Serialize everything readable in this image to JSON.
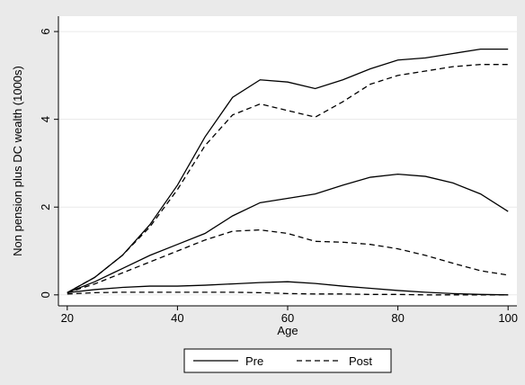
{
  "chart_data": {
    "type": "line",
    "x_label": "Age",
    "y_label": "Non pension plus DC wealth (1000s)",
    "x": [
      20,
      25,
      30,
      35,
      40,
      45,
      50,
      55,
      60,
      65,
      70,
      75,
      80,
      85,
      90,
      95,
      100
    ],
    "series": [
      {
        "name": "Pre",
        "color": "#000000",
        "dash": "solid",
        "values": [
          0.05,
          0.4,
          0.9,
          1.6,
          2.5,
          3.6,
          4.5,
          4.9,
          4.85,
          4.7,
          4.9,
          5.15,
          5.35,
          5.4,
          5.5,
          5.6,
          5.6
        ]
      },
      {
        "name": "Post",
        "color": "#000000",
        "dash": "dashed",
        "values": [
          0.05,
          0.4,
          0.9,
          1.55,
          2.4,
          3.4,
          4.1,
          4.35,
          4.2,
          4.05,
          4.4,
          4.8,
          5.0,
          5.1,
          5.2,
          5.25,
          5.25
        ]
      },
      {
        "color": "#000000",
        "dash": "solid",
        "values": [
          0.05,
          0.3,
          0.6,
          0.9,
          1.15,
          1.4,
          1.8,
          2.1,
          2.2,
          2.3,
          2.5,
          2.68,
          2.75,
          2.7,
          2.55,
          2.3,
          1.9
        ]
      },
      {
        "color": "#000000",
        "dash": "dashed",
        "values": [
          0.05,
          0.25,
          0.5,
          0.75,
          1.0,
          1.25,
          1.45,
          1.48,
          1.4,
          1.22,
          1.2,
          1.15,
          1.05,
          0.9,
          0.72,
          0.55,
          0.45
        ]
      },
      {
        "color": "#000000",
        "dash": "solid",
        "values": [
          0.05,
          0.12,
          0.17,
          0.2,
          0.2,
          0.22,
          0.25,
          0.28,
          0.3,
          0.26,
          0.2,
          0.15,
          0.1,
          0.06,
          0.03,
          0.01,
          0
        ]
      },
      {
        "color": "#000000",
        "dash": "dashed",
        "values": [
          0.02,
          0.05,
          0.06,
          0.06,
          0.06,
          0.06,
          0.06,
          0.05,
          0.03,
          0.02,
          0.02,
          0.01,
          0.01,
          0,
          0,
          0,
          0
        ]
      }
    ],
    "xlim": [
      18.4,
      101.6
    ],
    "ylim": [
      -0.25,
      6.35
    ],
    "xticks": [
      20,
      40,
      60,
      80,
      100
    ],
    "yticks": [
      0,
      2,
      4,
      6
    ],
    "grid": true,
    "legend": "bottom"
  }
}
